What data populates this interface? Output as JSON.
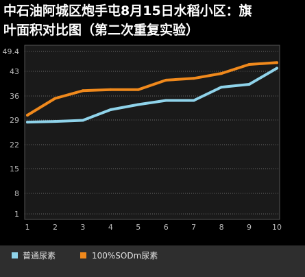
{
  "chart_data": {
    "type": "line",
    "title_lines": [
      "中石油阿城区炮手屯8月15日水稻小区：旗",
      "叶面积对比图（第二次重复实验）"
    ],
    "xlabel": "",
    "ylabel": "",
    "x": [
      1,
      2,
      3,
      4,
      5,
      6,
      7,
      8,
      9,
      10
    ],
    "y_ticks": [
      "49.4",
      "43",
      "36",
      "29",
      "22",
      "15",
      "8",
      "1"
    ],
    "ylim": [
      1,
      49.4
    ],
    "grid": "horizontal-dotted",
    "legend_position": "bottom",
    "series": [
      {
        "name": "普通尿素",
        "color": "#8fd3ea",
        "values": [
          28.4,
          28.6,
          28.9,
          32.0,
          33.5,
          34.7,
          34.7,
          38.5,
          39.3,
          44.0
        ]
      },
      {
        "name": "100%SODm尿素",
        "color": "#f0891c",
        "values": [
          30.4,
          35.3,
          37.5,
          37.8,
          37.8,
          40.5,
          41.0,
          42.4,
          45.2,
          45.8
        ]
      }
    ]
  }
}
